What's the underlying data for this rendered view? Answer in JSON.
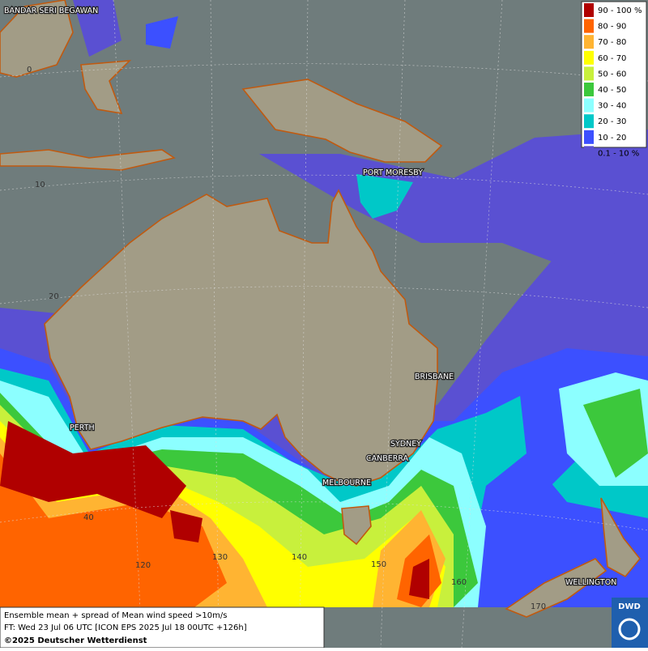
{
  "legend": {
    "items": [
      {
        "label": "90 - 100 %",
        "color": "#b00000"
      },
      {
        "label": "80 - 90",
        "color": "#ff6400"
      },
      {
        "label": "70 - 80",
        "color": "#ffb432"
      },
      {
        "label": "60 - 70",
        "color": "#ffff00"
      },
      {
        "label": "50 - 60",
        "color": "#c8f03c"
      },
      {
        "label": "40 - 50",
        "color": "#3cc83c"
      },
      {
        "label": "30 - 40",
        "color": "#8cffff"
      },
      {
        "label": "20 - 30",
        "color": "#00c8c8"
      },
      {
        "label": "10 - 20",
        "color": "#3c50ff"
      },
      {
        "label": "0.1 - 10 %",
        "color": "#5a50d2"
      }
    ]
  },
  "cities": [
    "BANDAR SERI BEGAWAN",
    "PORT MORESBY",
    "BRISBANE",
    "PERTH",
    "SYDNEY",
    "CANBERRA",
    "MELBOURNE",
    "WELLINGTON"
  ],
  "grid_labels": [
    "0",
    "10",
    "20",
    "40",
    "120",
    "130",
    "140",
    "150",
    "160",
    "170"
  ],
  "caption": {
    "lines": [
      "Ensemble mean + spread of Mean wind speed >10m/s",
      "FT: Wed 23 Jul 06 UTC [ICON EPS 2025 Jul 18 00UTC +126h]"
    ],
    "copyright": "©2025 Deutscher Wetterdienst"
  },
  "logo": "DWD"
}
